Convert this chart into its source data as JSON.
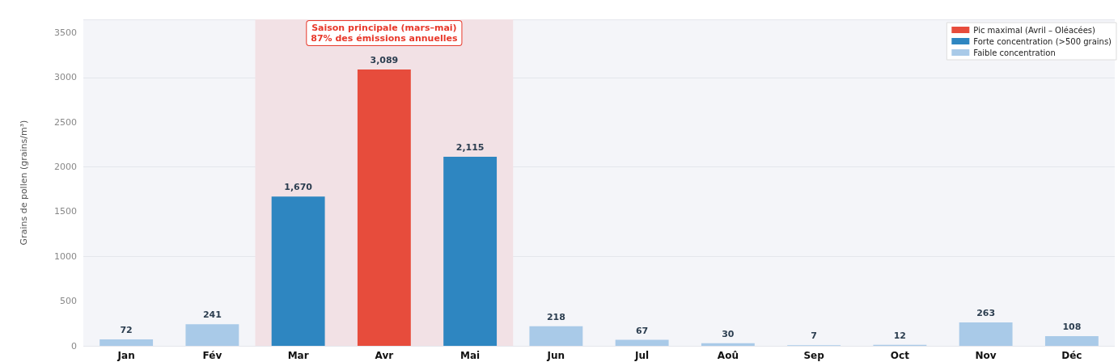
{
  "chart_data": {
    "type": "bar",
    "categories": [
      "Jan",
      "Fév",
      "Mar",
      "Avr",
      "Mai",
      "Jun",
      "Jul",
      "Aoû",
      "Sep",
      "Oct",
      "Nov",
      "Déc"
    ],
    "ylabel": "Grains de pollen (grains/m³)",
    "series": [
      {
        "name": "Pic maximal (Avril – Oléacées)",
        "color": "#e74c3c",
        "values": [
          null,
          null,
          null,
          3089,
          null,
          null,
          null,
          null,
          null,
          null,
          null,
          null
        ],
        "value_labels": [
          null,
          null,
          null,
          "3,089",
          null,
          null,
          null,
          null,
          null,
          null,
          null,
          null
        ]
      },
      {
        "name": "Forte concentration (>500 grains)",
        "color": "#2e86c1",
        "values": [
          null,
          null,
          1670,
          null,
          2115,
          null,
          null,
          null,
          null,
          null,
          null,
          null
        ],
        "value_labels": [
          null,
          null,
          "1,670",
          null,
          "2,115",
          null,
          null,
          null,
          null,
          null,
          null,
          null
        ]
      },
      {
        "name": "Faible concentration",
        "color": "#a9cae8",
        "values": [
          72,
          241,
          null,
          null,
          null,
          218,
          67,
          30,
          7,
          12,
          263,
          108
        ],
        "value_labels": [
          "72",
          "241",
          null,
          null,
          null,
          "218",
          "67",
          "30",
          "7",
          "12",
          "263",
          "108"
        ]
      }
    ],
    "ylim": [
      0,
      3650
    ],
    "yticks": [
      0,
      500,
      1000,
      1500,
      2000,
      2500,
      3000,
      3500
    ],
    "bands": [
      {
        "axis": "x",
        "from": "Mar",
        "to": "Mai",
        "label": "Saison principale (mars–mai)\n87% des émissions annuelles",
        "color": "#f2e1e5"
      }
    ],
    "grid": "y",
    "legend": "top right"
  }
}
